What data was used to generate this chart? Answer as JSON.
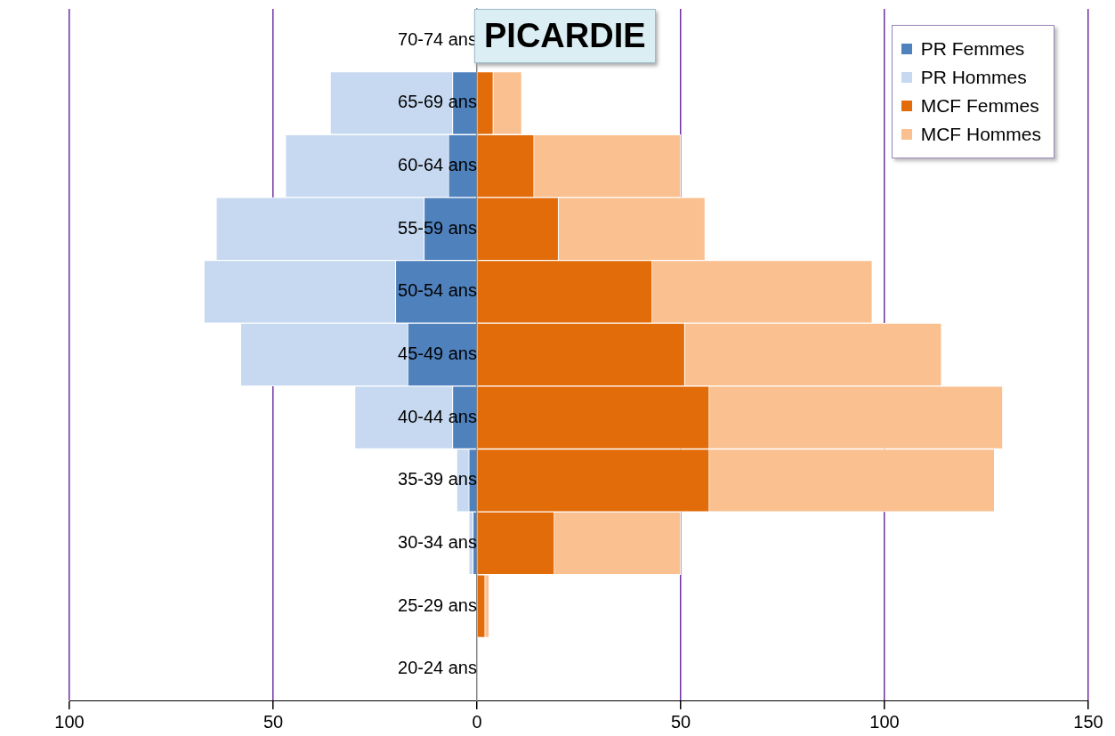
{
  "chart_data": {
    "type": "bar",
    "orientation": "horizontal",
    "stacked": true,
    "title": "PICARDIE",
    "categories": [
      "70-74 ans",
      "65-69 ans",
      "60-64 ans",
      "55-59 ans",
      "50-54 ans",
      "45-49 ans",
      "40-44 ans",
      "35-39 ans",
      "30-34 ans",
      "25-29 ans",
      "20-24 ans"
    ],
    "series": [
      {
        "name": "PR Femmes",
        "color": "#4f81bd",
        "values": [
          0,
          -6,
          -7,
          -13,
          -20,
          -17,
          -6,
          -2,
          -1,
          0,
          0
        ]
      },
      {
        "name": "PR Hommes",
        "color": "#c6d9f1",
        "values": [
          0,
          -30,
          -40,
          -51,
          -47,
          -41,
          -24,
          -3,
          -1,
          0,
          0
        ]
      },
      {
        "name": "MCF Femmes",
        "color": "#e36c0a",
        "values": [
          0,
          4,
          14,
          20,
          43,
          51,
          57,
          57,
          19,
          2,
          0
        ]
      },
      {
        "name": "MCF Hommes",
        "color": "#fac090",
        "values": [
          0,
          7,
          36,
          36,
          54,
          63,
          72,
          70,
          31,
          1,
          0
        ]
      }
    ],
    "xlim": [
      -100,
      150
    ],
    "xticks": [
      {
        "value": -100,
        "label": "100"
      },
      {
        "value": -50,
        "label": "50"
      },
      0,
      50,
      100,
      150
    ],
    "grid": "x",
    "legend": "top right"
  }
}
